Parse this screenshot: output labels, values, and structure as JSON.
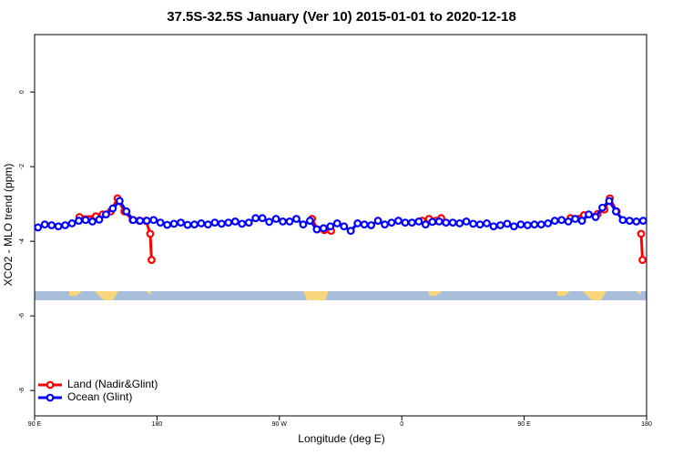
{
  "chart_data": {
    "type": "line",
    "title": "37.5S-32.5S January (Ver 10)   2015-01-01 to 2020-12-18",
    "x_label": "Longitude (deg E)",
    "y_label": "XCO2 - MLO trend (ppm)",
    "xlim": [
      90,
      540
    ],
    "ylim": [
      -8.68,
      1.54
    ],
    "xticks": [
      {
        "value": 90,
        "label": "90 E"
      },
      180,
      {
        "value": 270,
        "label": "90 W"
      },
      {
        "value": 360,
        "label": "0"
      },
      {
        "value": 450,
        "label": "90 E"
      },
      {
        "value": 540,
        "label": "180"
      }
    ],
    "yticks": [
      0,
      -2,
      -4,
      -6,
      -8
    ],
    "legend": "bottomleft",
    "series": [
      {
        "name": "Land (Nadir&Glint)",
        "color": "#ff0000",
        "x": [
          123,
          135,
          140,
          146,
          151,
          156,
          162,
          167,
          172,
          175,
          176,
          null,
          294,
          298,
          303,
          308,
          null,
          375,
          380,
          385,
          389,
          null,
          484,
          494,
          504,
          509,
          513,
          518,
          null,
          536,
          537
        ],
        "values": [
          -3.35,
          -3.33,
          -3.28,
          -3.2,
          -2.85,
          -3.2,
          -3.43,
          -3.45,
          -3.45,
          -3.8,
          -4.5,
          null,
          -3.4,
          -3.68,
          -3.7,
          -3.72,
          null,
          -3.45,
          -3.4,
          -3.45,
          -3.38,
          null,
          -3.38,
          -3.3,
          -3.27,
          -3.15,
          -2.85,
          -3.2,
          null,
          -3.8,
          -4.5
        ]
      },
      {
        "name": "Ocean (Glint)",
        "color": "#0000ff",
        "x": [
          92.5,
          97.5,
          102.5,
          107.5,
          112.5,
          117.5,
          122.5,
          127.5,
          132.5,
          137.5,
          142.5,
          147.5,
          152.5,
          157.5,
          162.5,
          167.5,
          172.5,
          177.5,
          182.5,
          187.5,
          192.5,
          197.5,
          202.5,
          207.5,
          212.5,
          217.5,
          222.5,
          227.5,
          232.5,
          237.5,
          242.5,
          247.5,
          252.5,
          257.5,
          262.5,
          267.5,
          272.5,
          277.5,
          282.5,
          287.5,
          292.5,
          297.5,
          302.5,
          307.5,
          312.5,
          317.5,
          322.5,
          327.5,
          332.5,
          337.5,
          342.5,
          347.5,
          352.5,
          357.5,
          362.5,
          367.5,
          372.5,
          377.5,
          382.5,
          387.5,
          392.5,
          397.5,
          402.5,
          407.5,
          412.5,
          417.5,
          422.5,
          427.5,
          432.5,
          437.5,
          442.5,
          447.5,
          452.5,
          457.5,
          462.5,
          467.5,
          472.5,
          477.5,
          482.5,
          487.5,
          492.5,
          497.5,
          502.5,
          507.5,
          512.5,
          517.5,
          522.5,
          527.5,
          532.5,
          537.5
        ],
        "values": [
          -3.63,
          -3.55,
          -3.57,
          -3.6,
          -3.57,
          -3.52,
          -3.45,
          -3.43,
          -3.47,
          -3.42,
          -3.28,
          -3.12,
          -2.92,
          -3.2,
          -3.43,
          -3.45,
          -3.45,
          -3.43,
          -3.5,
          -3.56,
          -3.53,
          -3.5,
          -3.56,
          -3.55,
          -3.52,
          -3.55,
          -3.5,
          -3.53,
          -3.5,
          -3.47,
          -3.53,
          -3.5,
          -3.38,
          -3.38,
          -3.48,
          -3.4,
          -3.47,
          -3.47,
          -3.4,
          -3.55,
          -3.45,
          -3.68,
          -3.65,
          -3.6,
          -3.52,
          -3.6,
          -3.72,
          -3.52,
          -3.55,
          -3.57,
          -3.45,
          -3.55,
          -3.5,
          -3.45,
          -3.5,
          -3.5,
          -3.47,
          -3.55,
          -3.48,
          -3.47,
          -3.5,
          -3.5,
          -3.52,
          -3.47,
          -3.53,
          -3.55,
          -3.52,
          -3.6,
          -3.57,
          -3.53,
          -3.6,
          -3.55,
          -3.57,
          -3.55,
          -3.55,
          -3.52,
          -3.45,
          -3.43,
          -3.47,
          -3.4,
          -3.45,
          -3.28,
          -3.35,
          -3.1,
          -2.92,
          -3.2,
          -3.43,
          -3.45,
          -3.47,
          -3.45
        ]
      }
    ]
  }
}
